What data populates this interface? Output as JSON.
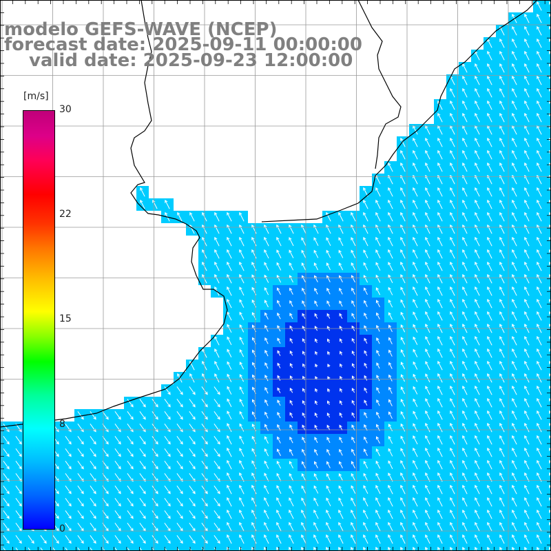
{
  "title": {
    "line1": "modelo GEFS-WAVE (NCEP)",
    "line2": "forecast date: 2025-09-11 00:00:00",
    "line3": "valid date: 2025-09-23 12:00:00"
  },
  "colorbar": {
    "unit": "[m/s]",
    "ticks": [
      "30",
      "22",
      "15",
      "8",
      "0"
    ],
    "min": 0,
    "max": 30,
    "colors": [
      "#0000ff",
      "#00bbff",
      "#00ffff",
      "#00ff00",
      "#ffff00",
      "#ff7700",
      "#ff0000",
      "#c0007a"
    ]
  },
  "map": {
    "land_color": "#ffffff",
    "grid_color": "#999999",
    "coast_color": "#000000",
    "arrow_color": "#ffffff",
    "field_colors": {
      "weak": "#0033ee",
      "moderate": "#0088ff",
      "strong": "#00ccff"
    }
  }
}
